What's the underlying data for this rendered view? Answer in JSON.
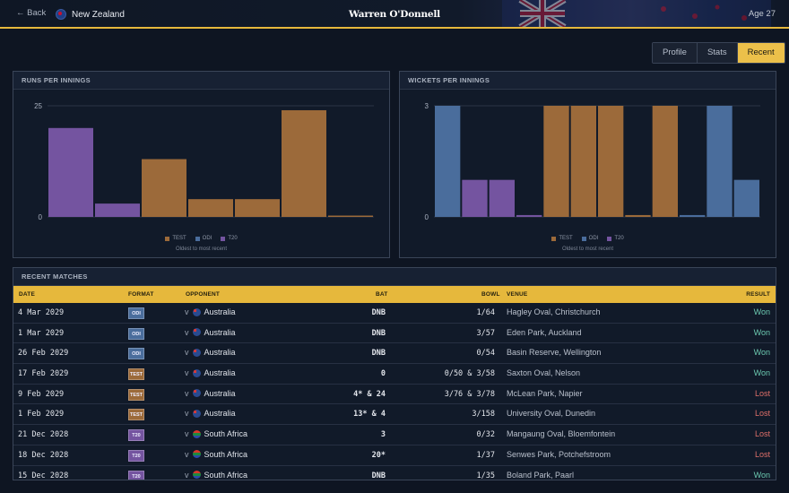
{
  "header": {
    "back_label": "← Back",
    "country": "New Zealand",
    "player_name": "Warren O'Donnell",
    "age": "Age 27"
  },
  "tabs": [
    {
      "label": "Profile",
      "active": false
    },
    {
      "label": "Stats",
      "active": false
    },
    {
      "label": "Recent",
      "active": true
    }
  ],
  "colors": {
    "accent": "#e6b83c",
    "test": "#9c6a3a",
    "odi": "#4a6d9c",
    "t20": "#7454a0",
    "won": "#6bc9b0",
    "lost": "#e0706a"
  },
  "runs_chart": {
    "title": "RUNS PER INNINGS",
    "legend": [
      "TEST",
      "ODI",
      "T20"
    ],
    "caption": "Oldest to most recent"
  },
  "wickets_chart": {
    "title": "WICKETS PER INNINGS",
    "legend": [
      "TEST",
      "ODI",
      "T20"
    ],
    "caption": "Oldest to most recent"
  },
  "chart_data": [
    {
      "type": "bar",
      "title": "RUNS PER INNINGS",
      "ylim": [
        0,
        25
      ],
      "yticks": [
        "0",
        "25"
      ],
      "grid": true,
      "legend_position": "bottom",
      "bars": [
        {
          "format": "T20",
          "value": 20
        },
        {
          "format": "T20",
          "value": 3
        },
        {
          "format": "TEST",
          "value": 13
        },
        {
          "format": "TEST",
          "value": 4
        },
        {
          "format": "TEST",
          "value": 4
        },
        {
          "format": "TEST",
          "value": 24
        },
        {
          "format": "TEST",
          "value": 0.3
        }
      ]
    },
    {
      "type": "bar",
      "title": "WICKETS PER INNINGS",
      "ylim": [
        0,
        3
      ],
      "yticks": [
        "0",
        "3"
      ],
      "grid": true,
      "legend_position": "bottom",
      "bars": [
        {
          "format": "ODI",
          "value": 3
        },
        {
          "format": "T20",
          "value": 1
        },
        {
          "format": "T20",
          "value": 1
        },
        {
          "format": "T20",
          "value": 0.05
        },
        {
          "format": "TEST",
          "value": 3
        },
        {
          "format": "TEST",
          "value": 3
        },
        {
          "format": "TEST",
          "value": 3
        },
        {
          "format": "TEST",
          "value": 0.05
        },
        {
          "format": "TEST",
          "value": 3
        },
        {
          "format": "ODI",
          "value": 0.05
        },
        {
          "format": "ODI",
          "value": 3
        },
        {
          "format": "ODI",
          "value": 1
        }
      ]
    }
  ],
  "matches": {
    "title": "RECENT MATCHES",
    "columns": {
      "date": "DATE",
      "format": "FORMAT",
      "opponent": "OPPONENT",
      "bat": "BAT",
      "bowl": "BOWL",
      "venue": "VENUE",
      "result": "RESULT"
    },
    "rows": [
      {
        "date": "4 Mar 2029",
        "format": "ODI",
        "opponent": "Australia",
        "flag": "au",
        "bat": "DNB",
        "bowl": "1/64",
        "venue": "Hagley Oval, Christchurch",
        "result": "Won"
      },
      {
        "date": "1 Mar 2029",
        "format": "ODI",
        "opponent": "Australia",
        "flag": "au",
        "bat": "DNB",
        "bowl": "3/57",
        "venue": "Eden Park, Auckland",
        "result": "Won"
      },
      {
        "date": "26 Feb 2029",
        "format": "ODI",
        "opponent": "Australia",
        "flag": "au",
        "bat": "DNB",
        "bowl": "0/54",
        "venue": "Basin Reserve, Wellington",
        "result": "Won"
      },
      {
        "date": "17 Feb 2029",
        "format": "TEST",
        "opponent": "Australia",
        "flag": "au",
        "bat": "0",
        "bowl": "0/50 & 3/58",
        "venue": "Saxton Oval, Nelson",
        "result": "Won"
      },
      {
        "date": "9 Feb 2029",
        "format": "TEST",
        "opponent": "Australia",
        "flag": "au",
        "bat": "4* & 24",
        "bowl": "3/76 & 3/78",
        "venue": "McLean Park, Napier",
        "result": "Lost"
      },
      {
        "date": "1 Feb 2029",
        "format": "TEST",
        "opponent": "Australia",
        "flag": "au",
        "bat": "13* & 4",
        "bowl": "3/158",
        "venue": "University Oval, Dunedin",
        "result": "Lost"
      },
      {
        "date": "21 Dec 2028",
        "format": "T20",
        "opponent": "South Africa",
        "flag": "sa",
        "bat": "3",
        "bowl": "0/32",
        "venue": "Mangaung Oval, Bloemfontein",
        "result": "Lost"
      },
      {
        "date": "18 Dec 2028",
        "format": "T20",
        "opponent": "South Africa",
        "flag": "sa",
        "bat": "20*",
        "bowl": "1/37",
        "venue": "Senwes Park, Potchefstroom",
        "result": "Lost"
      },
      {
        "date": "15 Dec 2028",
        "format": "T20",
        "opponent": "South Africa",
        "flag": "sa",
        "bat": "DNB",
        "bowl": "1/35",
        "venue": "Boland Park, Paarl",
        "result": "Won"
      }
    ]
  }
}
